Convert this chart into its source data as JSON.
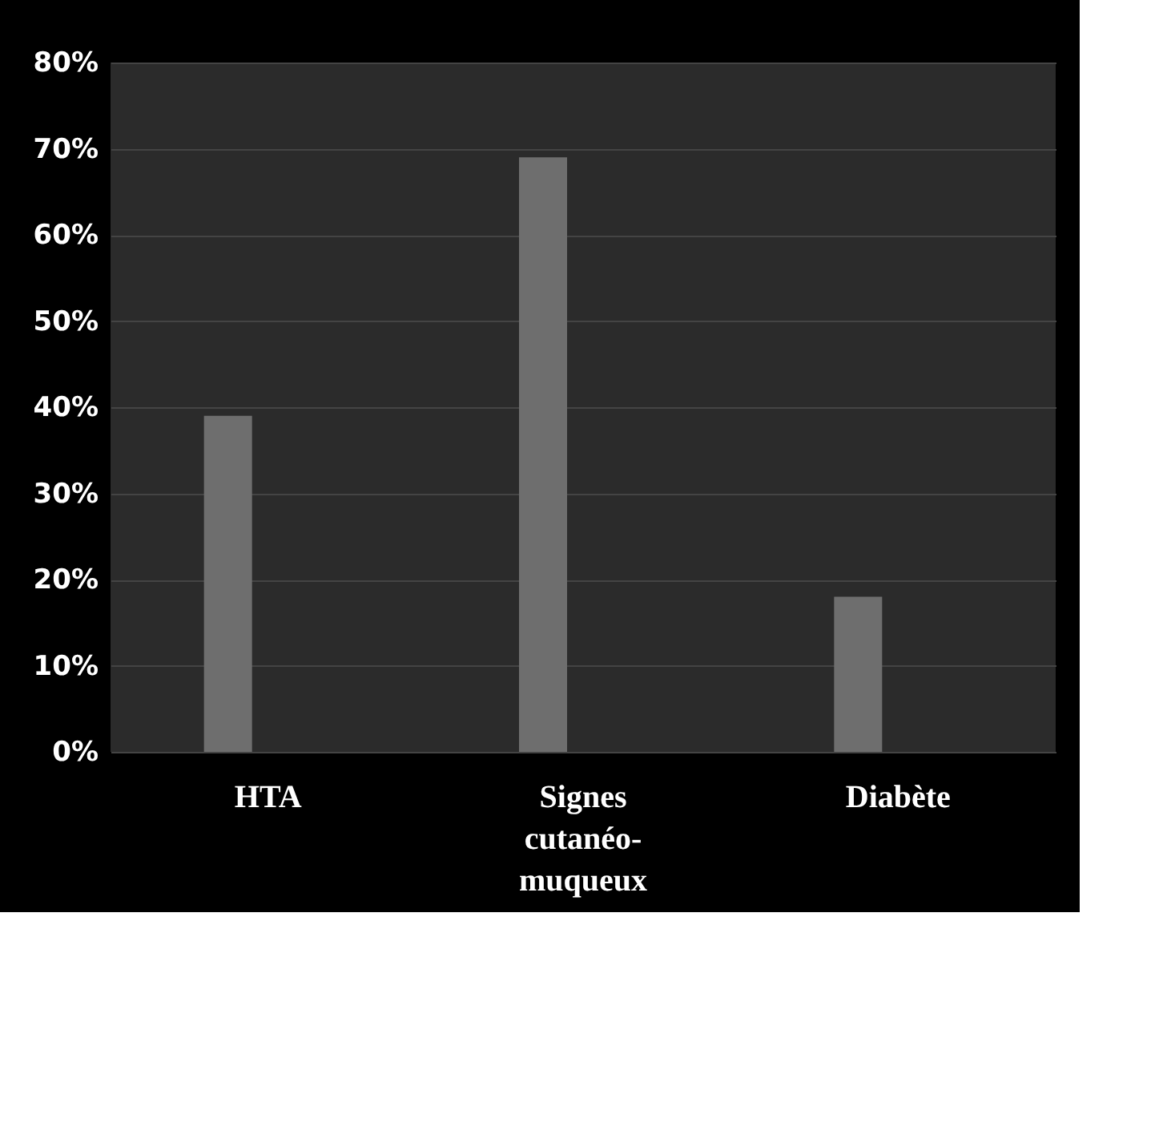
{
  "chart_data": {
    "type": "bar",
    "categories": [
      "HTA",
      "Signes cutanéo-muqueux",
      "Diabète"
    ],
    "values": [
      39,
      69,
      18
    ],
    "color": "#6e6e6e",
    "ylim": [
      0,
      80
    ],
    "yticks": [
      {
        "value": 0,
        "label": "0%"
      },
      {
        "value": 10,
        "label": "10%"
      },
      {
        "value": 20,
        "label": "20%"
      },
      {
        "value": 30,
        "label": "30%"
      },
      {
        "value": 40,
        "label": "40%"
      },
      {
        "value": 50,
        "label": "50%"
      },
      {
        "value": 60,
        "label": "60%"
      },
      {
        "value": 70,
        "label": "70%"
      },
      {
        "value": 80,
        "label": "80%"
      }
    ],
    "grid": "y"
  }
}
